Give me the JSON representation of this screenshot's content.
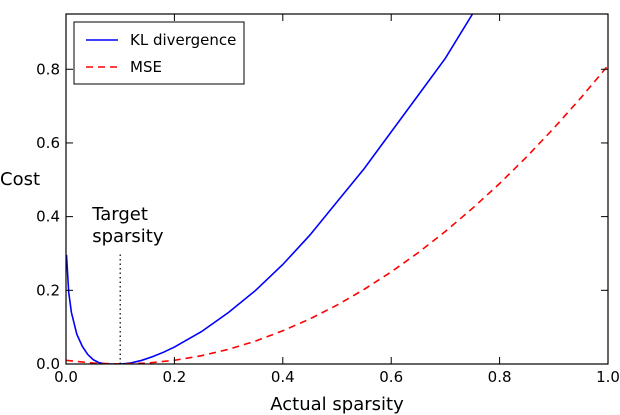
{
  "chart_data": {
    "type": "line",
    "title": "",
    "xlabel": "Actual sparsity",
    "ylabel": "Cost",
    "xlim": [
      0.0,
      1.0
    ],
    "ylim": [
      0.0,
      0.95
    ],
    "grid": false,
    "legend_position": "top-left",
    "x_ticks": [
      "0.0",
      "0.2",
      "0.4",
      "0.6",
      "0.8",
      "1.0"
    ],
    "y_ticks": [
      "0.0",
      "0.2",
      "0.4",
      "0.6",
      "0.8"
    ],
    "annotation": {
      "lines": [
        "Target",
        "sparsity"
      ],
      "x": 0.1,
      "y_top": 0.3
    },
    "series": [
      {
        "name": "KL divergence",
        "color": "#0000ff",
        "style": "solid",
        "x": [
          0.001,
          0.005,
          0.01,
          0.02,
          0.03,
          0.04,
          0.05,
          0.06,
          0.07,
          0.08,
          0.09,
          0.1,
          0.11,
          0.12,
          0.14,
          0.16,
          0.18,
          0.2,
          0.25,
          0.3,
          0.35,
          0.4,
          0.45,
          0.5,
          0.55,
          0.6,
          0.65,
          0.7,
          0.75
        ],
        "y": [
          0.296,
          0.195,
          0.14,
          0.081,
          0.048,
          0.026,
          0.012,
          0.004,
          0.001,
          0.0,
          0.0,
          0.0,
          0.001,
          0.003,
          0.01,
          0.02,
          0.032,
          0.046,
          0.088,
          0.14,
          0.2,
          0.27,
          0.35,
          0.44,
          0.53,
          0.63,
          0.73,
          0.83,
          0.95
        ]
      },
      {
        "name": "MSE",
        "color": "#ff0000",
        "style": "dashed",
        "x": [
          0.0,
          0.05,
          0.1,
          0.15,
          0.2,
          0.25,
          0.3,
          0.35,
          0.4,
          0.45,
          0.5,
          0.55,
          0.6,
          0.65,
          0.7,
          0.75,
          0.8,
          0.85,
          0.9,
          0.95,
          1.0
        ],
        "y": [
          0.01,
          0.0025,
          0.0,
          0.0025,
          0.01,
          0.0225,
          0.04,
          0.0625,
          0.09,
          0.1225,
          0.16,
          0.2025,
          0.25,
          0.3025,
          0.36,
          0.4225,
          0.49,
          0.5625,
          0.64,
          0.7225,
          0.81
        ]
      }
    ]
  }
}
